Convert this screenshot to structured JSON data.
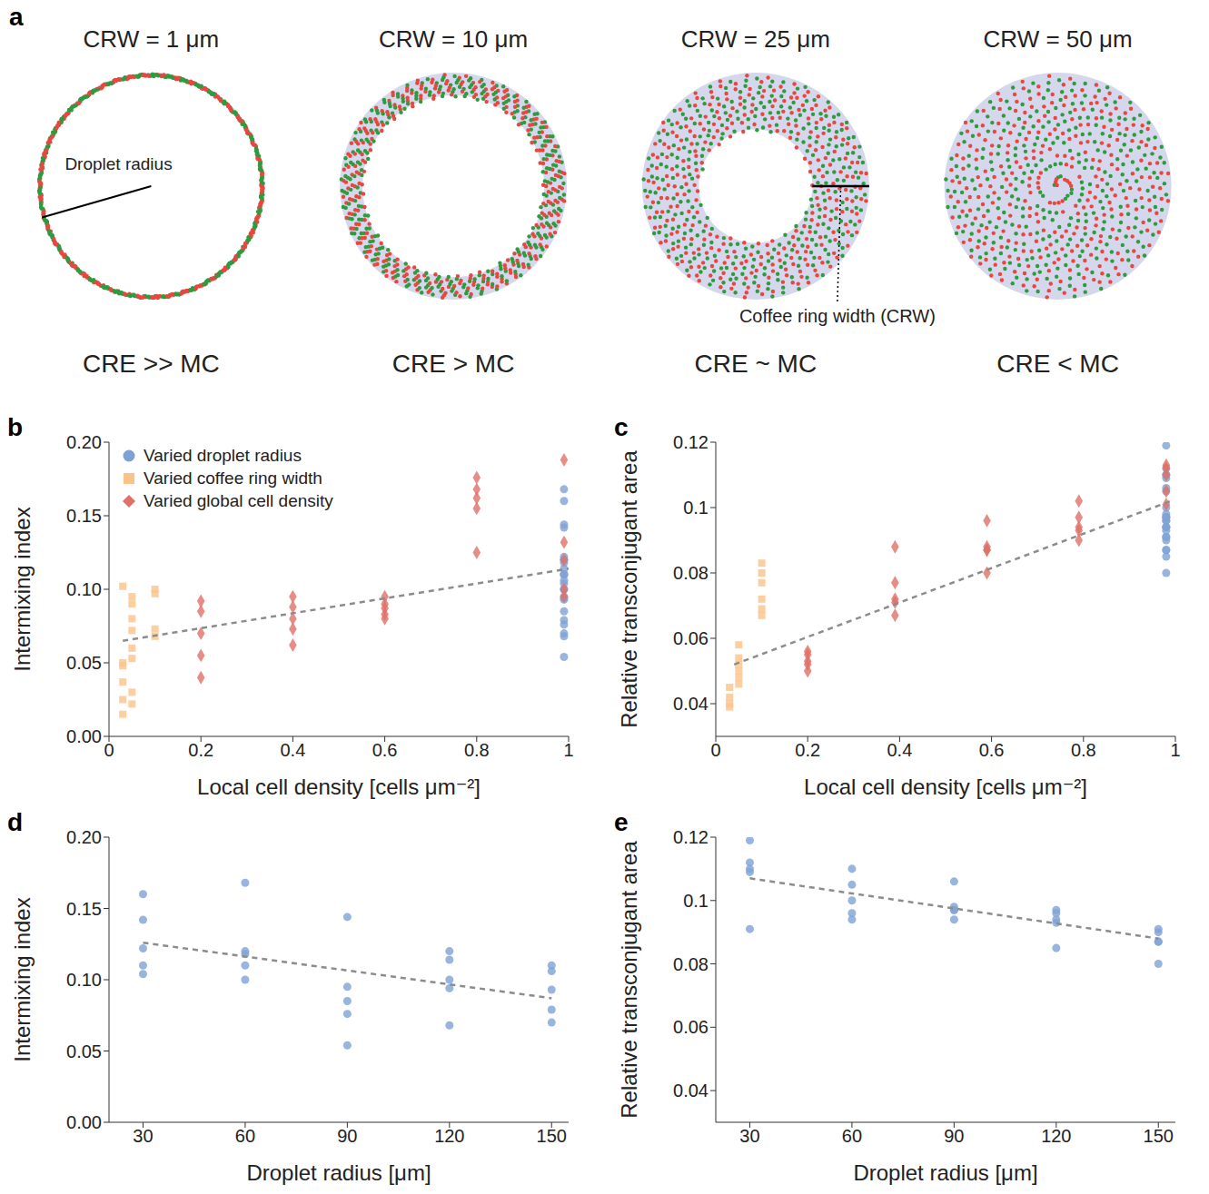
{
  "diagram": {
    "panel": "a",
    "rings": [
      {
        "title": "CRW = 1 μm",
        "coffee_ring_width": 1,
        "relation": "CRE >> MC"
      },
      {
        "title": "CRW = 10 μm",
        "coffee_ring_width": 10,
        "relation": "CRE > MC"
      },
      {
        "title": "CRW = 25 μm",
        "coffee_ring_width": 25,
        "relation": "CRE ~ MC"
      },
      {
        "title": "CRW = 50 μm",
        "coffee_ring_width": 50,
        "relation": "CRE < MC"
      }
    ],
    "droplet_radius_label": "Droplet radius",
    "coffee_ring_width_label": "Coffee ring width (CRW)",
    "dot_colors": [
      "#e8473f",
      "#2e9b3e"
    ]
  },
  "chart_data": [
    {
      "panel": "b",
      "type": "scatter",
      "x_label": "Local cell density [cells μm⁻²]",
      "y_label": "Intermixing index",
      "xlim": [
        0,
        1
      ],
      "xticks": [
        0,
        0.2,
        0.4,
        0.6,
        0.8,
        1
      ],
      "ylim": [
        0,
        0.2
      ],
      "yticks": [
        {
          "value": 0,
          "label": "0.00"
        },
        {
          "value": 0.05,
          "label": "0.05"
        },
        {
          "value": 0.1,
          "label": "0.10"
        },
        {
          "value": 0.15,
          "label": "0.15"
        },
        {
          "value": 0.2,
          "label": "0.20"
        }
      ],
      "legend": "upper left",
      "series": [
        {
          "name": "Varied droplet radius",
          "color": "#7fa2d6",
          "marker": "circle",
          "x": [
            0.99,
            0.99,
            0.99,
            0.99,
            0.99,
            0.99,
            0.99,
            0.99,
            0.99,
            0.99,
            0.99,
            0.99,
            0.99,
            0.99,
            0.99,
            0.99,
            0.99,
            0.99,
            0.99,
            0.99,
            0.99,
            0.99,
            0.99,
            0.99,
            0.99
          ],
          "values": [
            0.16,
            0.142,
            0.122,
            0.11,
            0.104,
            0.168,
            0.12,
            0.118,
            0.11,
            0.1,
            0.144,
            0.095,
            0.085,
            0.076,
            0.054,
            0.12,
            0.114,
            0.1,
            0.094,
            0.068,
            0.11,
            0.106,
            0.093,
            0.079,
            0.07
          ]
        },
        {
          "name": "Varied coffee ring width",
          "color": "#fbc38a",
          "marker": "square",
          "x": [
            0.03,
            0.03,
            0.03,
            0.03,
            0.03,
            0.03,
            0.05,
            0.05,
            0.05,
            0.05,
            0.05,
            0.05,
            0.05,
            0.05,
            0.1,
            0.1,
            0.1,
            0.1
          ],
          "values": [
            0.102,
            0.05,
            0.048,
            0.037,
            0.025,
            0.015,
            0.095,
            0.09,
            0.08,
            0.072,
            0.06,
            0.053,
            0.03,
            0.022,
            0.1,
            0.097,
            0.073,
            0.068
          ]
        },
        {
          "name": "Varied global cell density",
          "color": "#e07068",
          "marker": "diamond",
          "x": [
            0.2,
            0.2,
            0.2,
            0.2,
            0.2,
            0.4,
            0.4,
            0.4,
            0.4,
            0.4,
            0.6,
            0.6,
            0.6,
            0.6,
            0.6,
            0.8,
            0.8,
            0.8,
            0.8,
            0.8,
            0.99,
            0.99,
            0.99,
            0.99,
            0.99
          ],
          "values": [
            0.092,
            0.085,
            0.07,
            0.055,
            0.04,
            0.095,
            0.088,
            0.08,
            0.073,
            0.062,
            0.095,
            0.09,
            0.087,
            0.083,
            0.08,
            0.176,
            0.168,
            0.162,
            0.155,
            0.125,
            0.188,
            0.132,
            0.12,
            0.1,
            0.095
          ]
        },
        {
          "type": "line",
          "line_style": "dashed",
          "color": "#8c8c8c",
          "x": [
            0.03,
            1
          ],
          "values": [
            0.065,
            0.114
          ]
        }
      ]
    },
    {
      "panel": "c",
      "type": "scatter",
      "x_label": "Local cell density [cells μm⁻²]",
      "y_label": "Relative transconjugant area",
      "xlim": [
        0,
        1
      ],
      "xticks": [
        0,
        0.2,
        0.4,
        0.6,
        0.8,
        1
      ],
      "ylim": [
        0.03,
        0.12
      ],
      "yticks": [
        0.04,
        0.06,
        0.08,
        0.1,
        0.12
      ],
      "series": [
        {
          "name": "Varied droplet radius",
          "color": "#7fa2d6",
          "marker": "circle",
          "x": [
            0.98,
            0.98,
            0.98,
            0.98,
            0.98,
            0.98,
            0.98,
            0.98,
            0.98,
            0.98,
            0.98,
            0.98,
            0.98,
            0.98,
            0.98,
            0.98,
            0.98,
            0.98,
            0.98,
            0.98,
            0.98,
            0.98,
            0.98,
            0.98,
            0.98
          ],
          "values": [
            0.119,
            0.112,
            0.11,
            0.109,
            0.091,
            0.11,
            0.105,
            0.1,
            0.096,
            0.094,
            0.106,
            0.098,
            0.097,
            0.097,
            0.094,
            0.097,
            0.096,
            0.094,
            0.093,
            0.085,
            0.091,
            0.09,
            0.087,
            0.087,
            0.08
          ]
        },
        {
          "name": "Varied coffee ring width",
          "color": "#fbc38a",
          "marker": "square",
          "x": [
            0.03,
            0.03,
            0.03,
            0.03,
            0.05,
            0.05,
            0.05,
            0.05,
            0.05,
            0.05,
            0.1,
            0.1,
            0.1,
            0.1,
            0.1,
            0.1
          ],
          "values": [
            0.045,
            0.042,
            0.04,
            0.039,
            0.058,
            0.054,
            0.052,
            0.05,
            0.048,
            0.046,
            0.083,
            0.08,
            0.077,
            0.072,
            0.069,
            0.067
          ]
        },
        {
          "name": "Varied global cell density",
          "color": "#e07068",
          "marker": "diamond",
          "x": [
            0.2,
            0.2,
            0.2,
            0.2,
            0.2,
            0.39,
            0.39,
            0.39,
            0.39,
            0.39,
            0.59,
            0.59,
            0.59,
            0.59,
            0.59,
            0.79,
            0.79,
            0.79,
            0.79,
            0.79,
            0.98,
            0.98,
            0.98,
            0.98,
            0.98
          ],
          "values": [
            0.056,
            0.055,
            0.053,
            0.052,
            0.05,
            0.088,
            0.077,
            0.072,
            0.071,
            0.067,
            0.096,
            0.088,
            0.087,
            0.087,
            0.08,
            0.102,
            0.097,
            0.094,
            0.093,
            0.09,
            0.113,
            0.112,
            0.11,
            0.105,
            0.101
          ]
        },
        {
          "type": "line",
          "line_style": "dashed",
          "color": "#8c8c8c",
          "x": [
            0.04,
            0.99
          ],
          "values": [
            0.052,
            0.102
          ]
        }
      ]
    },
    {
      "panel": "d",
      "type": "scatter",
      "x_label": "Droplet radius [μm]",
      "y_label": "Intermixing index",
      "xlim": [
        20,
        155
      ],
      "xticks": [
        30,
        60,
        90,
        120,
        150
      ],
      "ylim": [
        0,
        0.2
      ],
      "yticks": [
        {
          "value": 0,
          "label": "0.00"
        },
        {
          "value": 0.05,
          "label": "0.05"
        },
        {
          "value": 0.1,
          "label": "0.10"
        },
        {
          "value": 0.15,
          "label": "0.15"
        },
        {
          "value": 0.2,
          "label": "0.20"
        }
      ],
      "series": [
        {
          "color": "#7fa2d6",
          "marker": "circle",
          "x": [
            30,
            30,
            30,
            30,
            30,
            60,
            60,
            60,
            60,
            60,
            90,
            90,
            90,
            90,
            90,
            120,
            120,
            120,
            120,
            120,
            150,
            150,
            150,
            150,
            150
          ],
          "values": [
            0.16,
            0.142,
            0.122,
            0.11,
            0.104,
            0.168,
            0.12,
            0.118,
            0.11,
            0.1,
            0.144,
            0.095,
            0.085,
            0.076,
            0.054,
            0.12,
            0.114,
            0.1,
            0.094,
            0.068,
            0.11,
            0.106,
            0.093,
            0.079,
            0.07
          ]
        },
        {
          "type": "line",
          "line_style": "dashed",
          "color": "#8c8c8c",
          "x": [
            30,
            150
          ],
          "values": [
            0.126,
            0.087
          ]
        }
      ]
    },
    {
      "panel": "e",
      "type": "scatter",
      "x_label": "Droplet radius [μm]",
      "y_label": "Relative transconjugant area",
      "xlim": [
        20,
        155
      ],
      "xticks": [
        30,
        60,
        90,
        120,
        150
      ],
      "ylim": [
        0.03,
        0.12
      ],
      "yticks": [
        0.04,
        0.06,
        0.08,
        0.1,
        0.12
      ],
      "series": [
        {
          "color": "#7fa2d6",
          "marker": "circle",
          "x": [
            30,
            30,
            30,
            30,
            30,
            60,
            60,
            60,
            60,
            60,
            90,
            90,
            90,
            90,
            90,
            120,
            120,
            120,
            120,
            120,
            150,
            150,
            150,
            150,
            150
          ],
          "values": [
            0.119,
            0.112,
            0.11,
            0.109,
            0.091,
            0.11,
            0.105,
            0.1,
            0.096,
            0.094,
            0.106,
            0.098,
            0.097,
            0.097,
            0.094,
            0.097,
            0.096,
            0.094,
            0.093,
            0.085,
            0.091,
            0.09,
            0.087,
            0.087,
            0.08
          ]
        },
        {
          "type": "line",
          "line_style": "dashed",
          "color": "#8c8c8c",
          "x": [
            30,
            150
          ],
          "values": [
            0.107,
            0.088
          ]
        }
      ]
    }
  ]
}
